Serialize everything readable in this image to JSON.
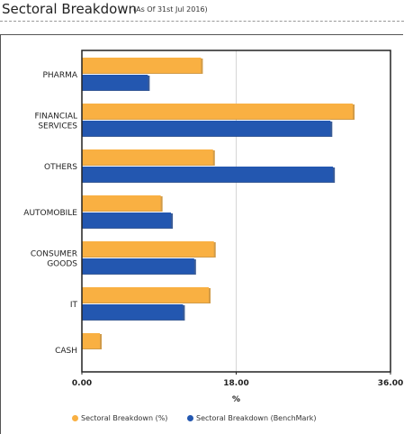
{
  "header": {
    "title": "Sectoral Breakdown",
    "subtitle": "(As Of 31st Jul 2016)"
  },
  "colors": {
    "fund": "#F9B042",
    "benchmark": "#2357B0",
    "fund_edge": "#C98A28",
    "benchmark_edge": "#173F85"
  },
  "chart_data": {
    "type": "bar",
    "orientation": "horizontal",
    "title": "",
    "categories": [
      [
        "PHARMA"
      ],
      [
        "FINANCIAL",
        "SERVICES"
      ],
      [
        "OTHERS"
      ],
      [
        "AUTOMOBILE"
      ],
      [
        "CONSUMER",
        "GOODS"
      ],
      [
        "IT"
      ],
      [
        "CASH"
      ]
    ],
    "series": [
      {
        "name": "Sectoral Breakdown (%)",
        "values": [
          13.9,
          31.6,
          15.3,
          9.2,
          15.4,
          14.8,
          2.1
        ]
      },
      {
        "name": "Sectoral Breakdown (BenchMark)",
        "values": [
          7.7,
          29.0,
          29.3,
          10.4,
          13.1,
          11.8,
          0
        ]
      }
    ],
    "xlabel": "%",
    "xlim": [
      0,
      36
    ],
    "ticks": [
      "0.00",
      "18.00",
      "36.00"
    ],
    "grid": true,
    "legend_position": "bottom"
  }
}
